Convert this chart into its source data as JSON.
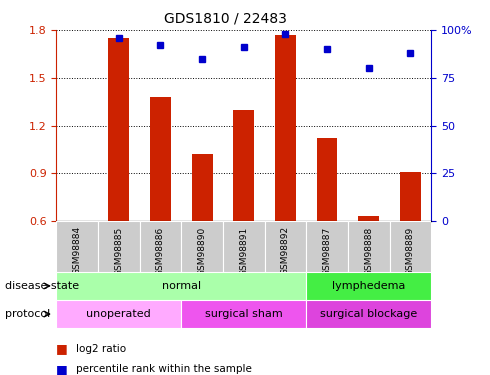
{
  "title": "GDS1810 / 22483",
  "samples": [
    "GSM98884",
    "GSM98885",
    "GSM98886",
    "GSM98890",
    "GSM98891",
    "GSM98892",
    "GSM98887",
    "GSM98888",
    "GSM98889"
  ],
  "log2_ratio": [
    0.6,
    1.75,
    1.38,
    1.02,
    1.3,
    1.77,
    1.12,
    0.63,
    0.91
  ],
  "percentile_rank": [
    null,
    96,
    92,
    85,
    91,
    98,
    90,
    80,
    88
  ],
  "ylim_left": [
    0.6,
    1.8
  ],
  "ylim_right": [
    0,
    100
  ],
  "yticks_left": [
    0.6,
    0.9,
    1.2,
    1.5,
    1.8
  ],
  "yticks_right": [
    0,
    25,
    50,
    75,
    100
  ],
  "ytick_right_labels": [
    "0",
    "25",
    "50",
    "75",
    "100%"
  ],
  "bar_color": "#cc2200",
  "dot_color": "#0000cc",
  "bar_bottom": 0.6,
  "disease_state_groups": [
    {
      "label": "normal",
      "start": 0,
      "end": 6,
      "color": "#aaffaa"
    },
    {
      "label": "lymphedema",
      "start": 6,
      "end": 9,
      "color": "#44ee44"
    }
  ],
  "protocol_groups": [
    {
      "label": "unoperated",
      "start": 0,
      "end": 3,
      "color": "#ffaaff"
    },
    {
      "label": "surgical sham",
      "start": 3,
      "end": 6,
      "color": "#ee55ee"
    },
    {
      "label": "surgical blockage",
      "start": 6,
      "end": 9,
      "color": "#dd44dd"
    }
  ],
  "legend_bar_color": "#cc2200",
  "legend_dot_color": "#0000cc",
  "legend_bar_label": "log2 ratio",
  "legend_dot_label": "percentile rank within the sample",
  "tick_color_left": "#cc2200",
  "tick_color_right": "#0000cc",
  "bg_color": "#ffffff",
  "row_label_disease": "disease state",
  "row_label_protocol": "protocol",
  "sample_box_color": "#cccccc"
}
